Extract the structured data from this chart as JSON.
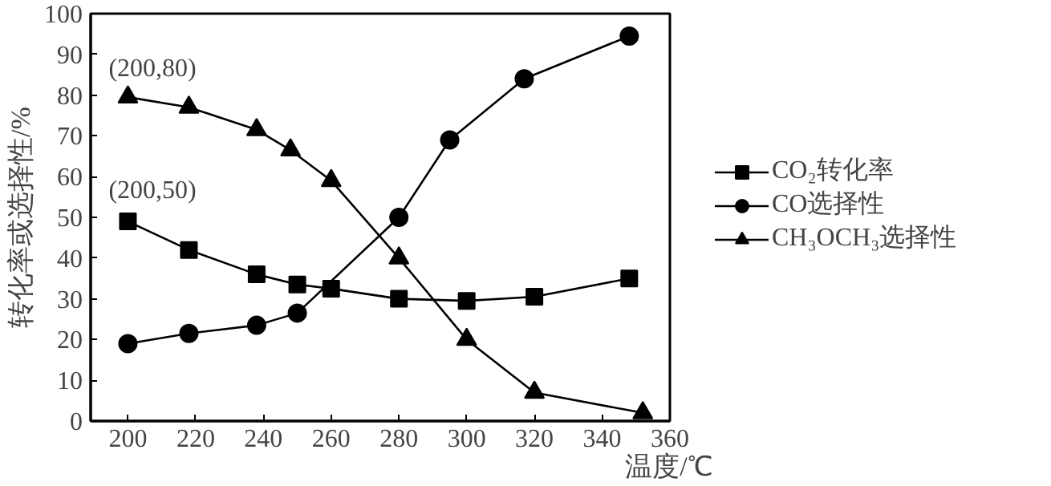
{
  "chart_data": {
    "type": "line",
    "xlabel": "温度/℃",
    "ylabel": "转化率或选择性/%",
    "xlim": [
      189,
      360
    ],
    "ylim": [
      0,
      100
    ],
    "xticks": [
      200,
      220,
      240,
      260,
      280,
      300,
      320,
      340,
      360
    ],
    "yticks": [
      0,
      10,
      20,
      30,
      40,
      50,
      60,
      70,
      80,
      90,
      100
    ],
    "grid": false,
    "legend": "right",
    "line_style": "solid",
    "series": [
      {
        "name": "CO₂转化率",
        "color": "#000000",
        "marker": "square",
        "x": [
          200,
          218,
          238,
          250,
          260,
          280,
          300,
          320,
          348
        ],
        "values": [
          49,
          42,
          36,
          33.5,
          32.5,
          30,
          29.5,
          30.5,
          35
        ]
      },
      {
        "name": "CO选择性",
        "color": "#000000",
        "marker": "circle",
        "x": [
          200,
          218,
          238,
          250,
          280,
          295,
          317,
          348
        ],
        "values": [
          19,
          21.5,
          23.5,
          26.5,
          50,
          69,
          84,
          94.5
        ]
      },
      {
        "name": "CH₃OCH₃选择性",
        "color": "#000000",
        "marker": "triangle",
        "x": [
          200,
          218,
          238,
          248,
          260,
          280,
          300,
          320,
          352
        ],
        "values": [
          79.5,
          77,
          71.5,
          66.5,
          59,
          40,
          20,
          7,
          2
        ]
      }
    ],
    "annotations": [
      {
        "text": "(200,80)",
        "x": 200,
        "y": 80
      },
      {
        "text": "(200,50)",
        "x": 200,
        "y": 50
      }
    ]
  }
}
